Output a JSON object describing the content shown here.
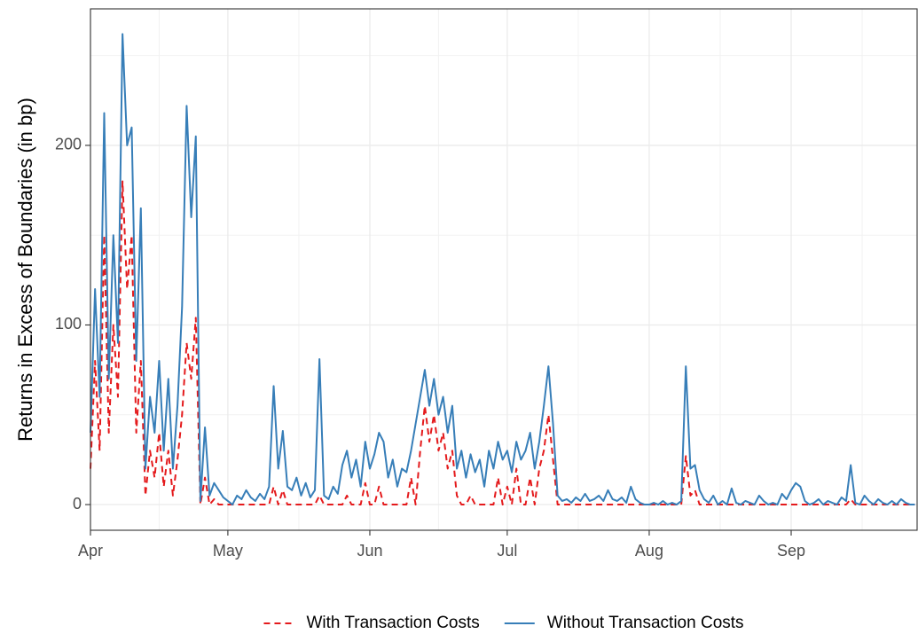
{
  "chart_data": {
    "type": "line",
    "y_label": "Returns in Excess of Boundaries (in bp)",
    "x": [
      0,
      1,
      2,
      3,
      4,
      5,
      6,
      7,
      8,
      9,
      10,
      11,
      12,
      13,
      14,
      15,
      16,
      17,
      18,
      19,
      20,
      21,
      22,
      23,
      24,
      25,
      26,
      27,
      28,
      29,
      30,
      31,
      32,
      33,
      34,
      35,
      36,
      37,
      38,
      39,
      40,
      41,
      42,
      43,
      44,
      45,
      46,
      47,
      48,
      49,
      50,
      51,
      52,
      53,
      54,
      55,
      56,
      57,
      58,
      59,
      60,
      61,
      62,
      63,
      64,
      65,
      66,
      67,
      68,
      69,
      70,
      71,
      72,
      73,
      74,
      75,
      76,
      77,
      78,
      79,
      80,
      81,
      82,
      83,
      84,
      85,
      86,
      87,
      88,
      89,
      90,
      91,
      92,
      93,
      94,
      95,
      96,
      97,
      98,
      99,
      100,
      101,
      102,
      103,
      104,
      105,
      106,
      107,
      108,
      109,
      110,
      111,
      112,
      113,
      114,
      115,
      116,
      117,
      118,
      119,
      120,
      121,
      122,
      123,
      124,
      125,
      126,
      127,
      128,
      129,
      130,
      131,
      132,
      133,
      134,
      135,
      136,
      137,
      138,
      139,
      140,
      141,
      142,
      143,
      144,
      145,
      146,
      147,
      148,
      149,
      150,
      151,
      152,
      153,
      154,
      155,
      156,
      157,
      158,
      159,
      160,
      161,
      162,
      163,
      164,
      165,
      166,
      167,
      168,
      169,
      170,
      171,
      172,
      173,
      174,
      175,
      176,
      177,
      178,
      179,
      180
    ],
    "series": [
      {
        "name": "With Transaction Costs",
        "color": "#e41a1c",
        "linetype": "dashed",
        "values": [
          20,
          80,
          30,
          150,
          40,
          100,
          60,
          180,
          120,
          150,
          40,
          80,
          5,
          30,
          15,
          40,
          10,
          30,
          5,
          25,
          50,
          90,
          70,
          104,
          0,
          15,
          0,
          3,
          0,
          0,
          0,
          0,
          0,
          0,
          0,
          0,
          0,
          0,
          0,
          0,
          10,
          0,
          8,
          0,
          0,
          0,
          0,
          0,
          0,
          0,
          5,
          0,
          0,
          0,
          0,
          0,
          5,
          0,
          0,
          0,
          12,
          0,
          0,
          10,
          0,
          0,
          0,
          0,
          0,
          0,
          15,
          0,
          30,
          55,
          35,
          50,
          30,
          40,
          20,
          30,
          5,
          0,
          0,
          5,
          0,
          0,
          0,
          0,
          0,
          15,
          0,
          10,
          0,
          20,
          0,
          0,
          15,
          0,
          20,
          30,
          50,
          25,
          0,
          0,
          0,
          0,
          0,
          0,
          0,
          0,
          0,
          0,
          0,
          0,
          0,
          0,
          0,
          0,
          0,
          0,
          0,
          0,
          0,
          0,
          0,
          0,
          0,
          0,
          0,
          0,
          27,
          5,
          8,
          0,
          0,
          0,
          0,
          0,
          0,
          0,
          0,
          0,
          0,
          0,
          0,
          0,
          0,
          0,
          0,
          0,
          0,
          0,
          0,
          0,
          0,
          0,
          0,
          0,
          0,
          0,
          0,
          0,
          0,
          0,
          0,
          0,
          3,
          0,
          0,
          0,
          0,
          0,
          0,
          0,
          0,
          0,
          0,
          0,
          0,
          0,
          0
        ]
      },
      {
        "name": "Without Transaction Costs",
        "color": "#377eb8",
        "linetype": "solid",
        "values": [
          40,
          120,
          60,
          218,
          70,
          150,
          90,
          262,
          200,
          210,
          80,
          165,
          20,
          60,
          40,
          80,
          30,
          70,
          20,
          55,
          110,
          222,
          160,
          205,
          2,
          43,
          5,
          12,
          8,
          4,
          2,
          0,
          5,
          3,
          8,
          4,
          2,
          6,
          3,
          10,
          66,
          20,
          41,
          10,
          8,
          15,
          5,
          12,
          4,
          8,
          81,
          5,
          3,
          10,
          6,
          22,
          30,
          15,
          25,
          10,
          35,
          20,
          28,
          40,
          35,
          15,
          25,
          10,
          20,
          18,
          30,
          45,
          60,
          75,
          55,
          70,
          50,
          60,
          40,
          55,
          20,
          30,
          15,
          28,
          18,
          25,
          10,
          30,
          20,
          35,
          25,
          30,
          18,
          35,
          25,
          30,
          40,
          20,
          35,
          55,
          77,
          45,
          5,
          2,
          3,
          1,
          4,
          2,
          6,
          2,
          3,
          5,
          2,
          8,
          3,
          2,
          4,
          1,
          10,
          3,
          1,
          0,
          0,
          1,
          0,
          2,
          0,
          1,
          0,
          2,
          77,
          20,
          22,
          8,
          3,
          1,
          5,
          0,
          2,
          0,
          9,
          1,
          0,
          2,
          1,
          0,
          5,
          2,
          0,
          1,
          0,
          6,
          3,
          8,
          12,
          10,
          2,
          0,
          1,
          3,
          0,
          2,
          1,
          0,
          4,
          2,
          22,
          1,
          0,
          5,
          2,
          0,
          3,
          1,
          0,
          2,
          0,
          3,
          1,
          0,
          0
        ]
      }
    ],
    "xlim": [
      0,
      180.5
    ],
    "xticks": [
      {
        "value": 0,
        "label": "Apr"
      },
      {
        "value": 30,
        "label": "May"
      },
      {
        "value": 61,
        "label": "Jun"
      },
      {
        "value": 91,
        "label": "Jul"
      },
      {
        "value": 122,
        "label": "Aug"
      },
      {
        "value": 153,
        "label": "Sep"
      }
    ],
    "ylim": [
      -14.3,
      276
    ],
    "yticks": [
      0,
      100,
      200
    ],
    "grid": true,
    "legend": "bottom"
  }
}
